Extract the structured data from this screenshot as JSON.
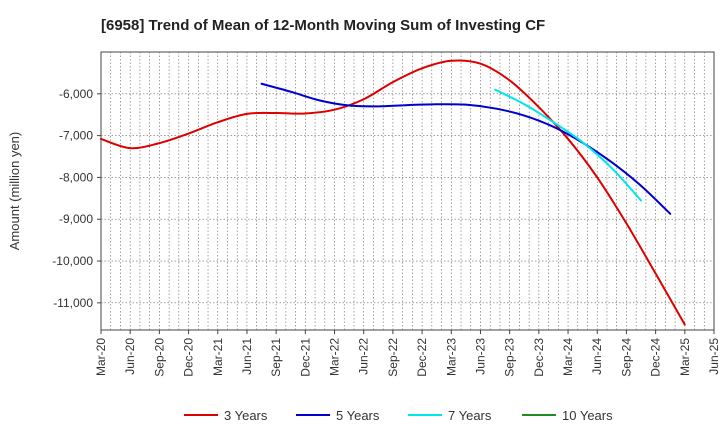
{
  "chart_data": {
    "type": "line",
    "title": "[6958]  Trend of Mean of 12-Month Moving Sum of Investing CF",
    "xlabel": "",
    "ylabel": "Amount (million yen)",
    "ylim": [
      -11650,
      -5000
    ],
    "yticks": [
      -6000,
      -7000,
      -8000,
      -9000,
      -10000,
      -11000
    ],
    "ytick_labels": [
      "-6,000",
      "-7,000",
      "-8,000",
      "-9,000",
      "-10,000",
      "-11,000"
    ],
    "x_ticks": [
      "Mar-20",
      "Jun-20",
      "Sep-20",
      "Dec-20",
      "Mar-21",
      "Jun-21",
      "Sep-21",
      "Dec-21",
      "Mar-22",
      "Jun-22",
      "Sep-22",
      "Dec-22",
      "Mar-23",
      "Jun-23",
      "Sep-23",
      "Dec-23",
      "Mar-24",
      "Jun-24",
      "Sep-24",
      "Dec-24",
      "Mar-25",
      "Jun-25"
    ],
    "grid": true,
    "legend_position": "bottom",
    "series": [
      {
        "name": "3 Years",
        "color": "#dd0000",
        "points": [
          [
            0,
            -7080
          ],
          [
            1,
            -7300
          ],
          [
            2,
            -7180
          ],
          [
            3,
            -6950
          ],
          [
            4,
            -6680
          ],
          [
            5,
            -6480
          ],
          [
            6,
            -6460
          ],
          [
            7,
            -6470
          ],
          [
            8,
            -6380
          ],
          [
            9,
            -6130
          ],
          [
            10,
            -5720
          ],
          [
            11,
            -5390
          ],
          [
            12,
            -5210
          ],
          [
            13,
            -5280
          ],
          [
            14,
            -5680
          ],
          [
            15,
            -6320
          ],
          [
            16,
            -7080
          ],
          [
            17,
            -8000
          ],
          [
            18,
            -9100
          ],
          [
            19,
            -10300
          ],
          [
            20,
            -11520
          ]
        ]
      },
      {
        "name": "5 Years",
        "color": "#0000cc",
        "points": [
          [
            5.5,
            -5760
          ],
          [
            6.5,
            -5950
          ],
          [
            7.5,
            -6160
          ],
          [
            8.5,
            -6280
          ],
          [
            9.5,
            -6300
          ],
          [
            10.5,
            -6270
          ],
          [
            11.5,
            -6250
          ],
          [
            12.5,
            -6260
          ],
          [
            13.5,
            -6350
          ],
          [
            14.5,
            -6520
          ],
          [
            15.5,
            -6790
          ],
          [
            16.5,
            -7170
          ],
          [
            17.5,
            -7640
          ],
          [
            18.5,
            -8200
          ],
          [
            19.5,
            -8870
          ]
        ]
      },
      {
        "name": "7 Years",
        "color": "#00e5ee",
        "points": [
          [
            13.5,
            -5900
          ],
          [
            14.5,
            -6250
          ],
          [
            15.5,
            -6680
          ],
          [
            16.5,
            -7160
          ],
          [
            17.5,
            -7780
          ],
          [
            18.5,
            -8550
          ]
        ]
      },
      {
        "name": "10 Years",
        "color": "#228b22",
        "points": []
      }
    ]
  }
}
